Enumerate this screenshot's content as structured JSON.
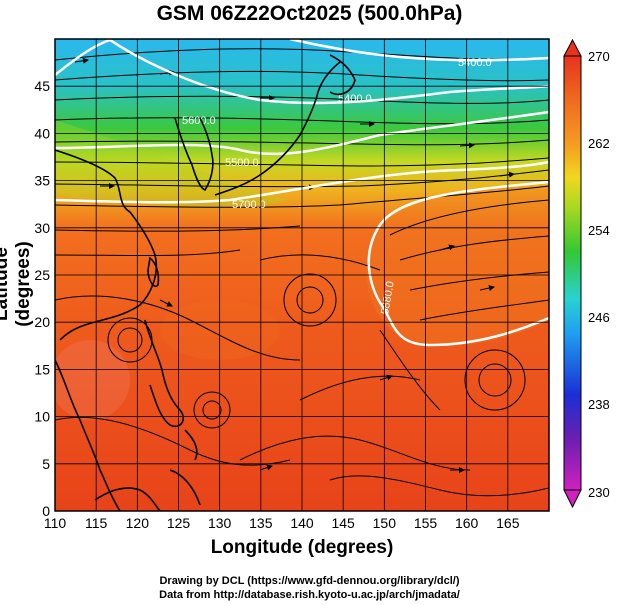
{
  "title": "GSM 06Z22Oct2025 (500.0hPa)",
  "xlabel": "Longitude (degrees)",
  "ylabel": "Latitude  (degrees)",
  "credits": {
    "line1": "Drawing by DCL (https://www.gfd-dennou.org/library/dcl/)",
    "line2": "Data from http://database.rish.kyoto-u.ac.jp/arch/jmadata/"
  },
  "map": {
    "lon_range": [
      110,
      170
    ],
    "lat_range": [
      0,
      50
    ],
    "lon_ticks": [
      "110",
      "115",
      "120",
      "125",
      "130",
      "135",
      "140",
      "145",
      "150",
      "155",
      "160",
      "165"
    ],
    "lat_ticks": [
      "0",
      "5",
      "10",
      "15",
      "20",
      "25",
      "30",
      "35",
      "40",
      "45"
    ],
    "colors": {
      "tropical": "#e8431a",
      "subtropical": "#f2701e",
      "midlat_yellow": "#e9d421",
      "midlat_green": "#3cc83c",
      "north_cyan": "#2ab8ee"
    },
    "contour_labels": [
      "5880.0",
      "5700.0",
      "5600.0",
      "5400.0",
      "5400.0",
      "5500.0"
    ]
  },
  "colorbar": {
    "min_label": "230",
    "max_label": "270",
    "tick_labels": [
      "238",
      "246",
      "254",
      "262"
    ],
    "stops": [
      "#d020c0",
      "#6a1fb0",
      "#1a2fd8",
      "#1e9ff0",
      "#28d2d2",
      "#34c834",
      "#a8d820",
      "#f0d81e",
      "#f59a22",
      "#f06a1e",
      "#e8321e"
    ]
  }
}
